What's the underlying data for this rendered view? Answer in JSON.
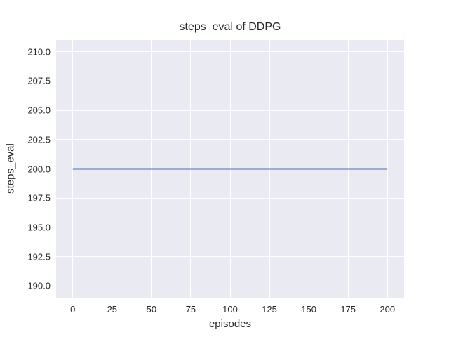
{
  "chart_data": {
    "type": "line",
    "title": "steps_eval of DDPG",
    "xlabel": "episodes",
    "ylabel": "steps_eval",
    "x": [
      0,
      200
    ],
    "series": [
      {
        "name": "steps_eval of DDPG",
        "values": [
          200,
          200
        ]
      }
    ],
    "xlim": [
      -10.6,
      210.6
    ],
    "ylim": [
      189,
      211
    ],
    "xticks": {
      "values": [
        0,
        25,
        50,
        75,
        100,
        125,
        150,
        175,
        200
      ],
      "labels": [
        "0",
        "25",
        "50",
        "75",
        "100",
        "125",
        "150",
        "175",
        "200"
      ]
    },
    "yticks": {
      "values": [
        190,
        192.5,
        195,
        197.5,
        200,
        202.5,
        205,
        207.5,
        210
      ],
      "labels": [
        "190.0",
        "192.5",
        "195.0",
        "197.5",
        "200.0",
        "202.5",
        "205.0",
        "207.5",
        "210.0"
      ]
    },
    "grid": true,
    "legend_position": "none",
    "colors": {
      "line": "#4c72b0",
      "plot_bg": "#eaeaf2",
      "grid": "#ffffff",
      "text": "#262626",
      "figure_bg": "#ffffff"
    },
    "line_width": 2
  }
}
